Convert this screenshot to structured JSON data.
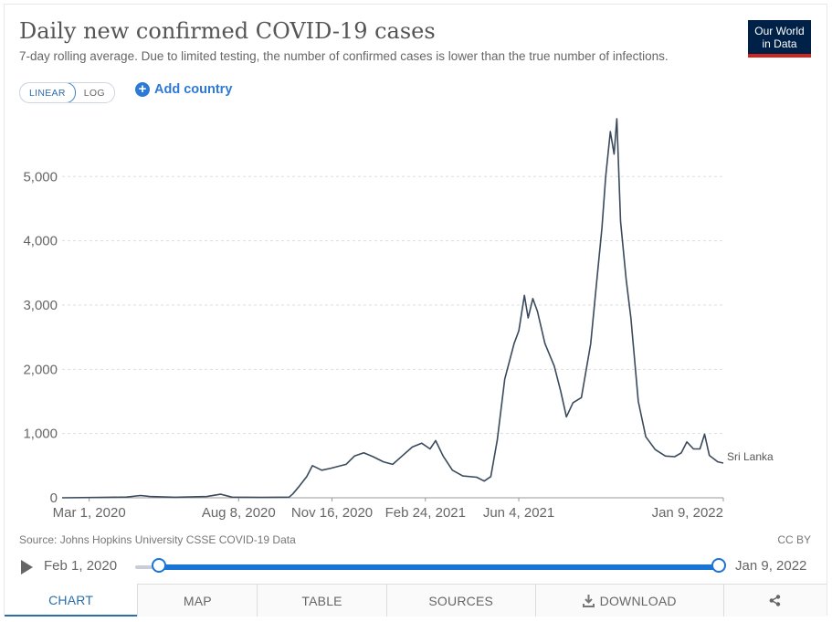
{
  "header": {
    "title": "Daily new confirmed COVID-19 cases",
    "subtitle": "7-day rolling average. Due to limited testing, the number of confirmed cases is lower than the true number of infections.",
    "logo_line1": "Our World",
    "logo_line2": "in Data"
  },
  "controls": {
    "linear_label": "LINEAR",
    "log_label": "LOG",
    "add_country_label": "Add country"
  },
  "footer": {
    "source": "Source: Johns Hopkins University CSSE COVID-19 Data",
    "license": "CC BY"
  },
  "timeline": {
    "start_label": "Feb 1, 2020",
    "end_label": "Jan 9, 2022",
    "range_start_fraction": 0.0,
    "range_end_fraction": 1.0
  },
  "tabs": [
    {
      "label": "CHART",
      "active": true
    },
    {
      "label": "MAP"
    },
    {
      "label": "TABLE"
    },
    {
      "label": "SOURCES"
    },
    {
      "label": "DOWNLOAD",
      "icon": "download-icon"
    },
    {
      "label": "",
      "icon": "share-icon"
    }
  ],
  "colors": {
    "line": "#3a4a5c",
    "accent": "#1a74d6",
    "logo_bg": "#002147",
    "logo_bar": "#ce261e"
  },
  "chart_data": {
    "type": "line",
    "title": "Daily new confirmed COVID-19 cases",
    "ylim": [
      0,
      5900
    ],
    "yticks": [
      0,
      1000,
      2000,
      3000,
      4000,
      5000
    ],
    "ytick_labels": [
      "0",
      "1,000",
      "2,000",
      "3,000",
      "4,000",
      "5,000"
    ],
    "xlim": [
      "2020-02-01",
      "2022-01-09"
    ],
    "xticks": [
      "2020-03-01",
      "2020-08-08",
      "2020-11-16",
      "2021-02-24",
      "2021-06-04",
      "2022-01-09"
    ],
    "xtick_labels": [
      "Mar 1, 2020",
      "Aug 8, 2020",
      "Nov 16, 2020",
      "Feb 24, 2021",
      "Jun 4, 2021",
      "Jan 9, 2022"
    ],
    "grid": true,
    "series": [
      {
        "name": "Sri Lanka",
        "points": [
          [
            "2020-02-01",
            0
          ],
          [
            "2020-03-15",
            5
          ],
          [
            "2020-04-10",
            12
          ],
          [
            "2020-04-25",
            35
          ],
          [
            "2020-05-05",
            20
          ],
          [
            "2020-06-01",
            8
          ],
          [
            "2020-07-05",
            20
          ],
          [
            "2020-07-20",
            55
          ],
          [
            "2020-08-01",
            10
          ],
          [
            "2020-09-01",
            5
          ],
          [
            "2020-10-01",
            10
          ],
          [
            "2020-10-05",
            60
          ],
          [
            "2020-10-12",
            180
          ],
          [
            "2020-10-20",
            330
          ],
          [
            "2020-10-26",
            500
          ],
          [
            "2020-11-05",
            430
          ],
          [
            "2020-11-15",
            460
          ],
          [
            "2020-12-01",
            520
          ],
          [
            "2020-12-10",
            650
          ],
          [
            "2020-12-20",
            700
          ],
          [
            "2020-12-30",
            640
          ],
          [
            "2021-01-10",
            560
          ],
          [
            "2021-01-20",
            520
          ],
          [
            "2021-01-30",
            650
          ],
          [
            "2021-02-10",
            790
          ],
          [
            "2021-02-20",
            850
          ],
          [
            "2021-03-01",
            760
          ],
          [
            "2021-03-07",
            890
          ],
          [
            "2021-03-15",
            650
          ],
          [
            "2021-03-25",
            430
          ],
          [
            "2021-04-05",
            340
          ],
          [
            "2021-04-20",
            320
          ],
          [
            "2021-04-28",
            260
          ],
          [
            "2021-05-05",
            330
          ],
          [
            "2021-05-12",
            900
          ],
          [
            "2021-05-20",
            1850
          ],
          [
            "2021-05-30",
            2400
          ],
          [
            "2021-06-04",
            2600
          ],
          [
            "2021-06-10",
            3150
          ],
          [
            "2021-06-14",
            2800
          ],
          [
            "2021-06-19",
            3100
          ],
          [
            "2021-06-24",
            2900
          ],
          [
            "2021-07-02",
            2400
          ],
          [
            "2021-07-12",
            2050
          ],
          [
            "2021-07-19",
            1650
          ],
          [
            "2021-07-25",
            1260
          ],
          [
            "2021-08-01",
            1480
          ],
          [
            "2021-08-10",
            1560
          ],
          [
            "2021-08-20",
            2400
          ],
          [
            "2021-08-26",
            3300
          ],
          [
            "2021-09-01",
            4200
          ],
          [
            "2021-09-05",
            5000
          ],
          [
            "2021-09-10",
            5700
          ],
          [
            "2021-09-14",
            5350
          ],
          [
            "2021-09-17",
            5900
          ],
          [
            "2021-09-21",
            4300
          ],
          [
            "2021-09-27",
            3400
          ],
          [
            "2021-10-02",
            2800
          ],
          [
            "2021-10-10",
            1500
          ],
          [
            "2021-10-18",
            950
          ],
          [
            "2021-10-28",
            750
          ],
          [
            "2021-11-08",
            650
          ],
          [
            "2021-11-18",
            640
          ],
          [
            "2021-11-25",
            700
          ],
          [
            "2021-12-01",
            870
          ],
          [
            "2021-12-08",
            760
          ],
          [
            "2021-12-15",
            760
          ],
          [
            "2021-12-20",
            990
          ],
          [
            "2021-12-25",
            660
          ],
          [
            "2022-01-03",
            560
          ],
          [
            "2022-01-09",
            540
          ]
        ]
      }
    ]
  }
}
